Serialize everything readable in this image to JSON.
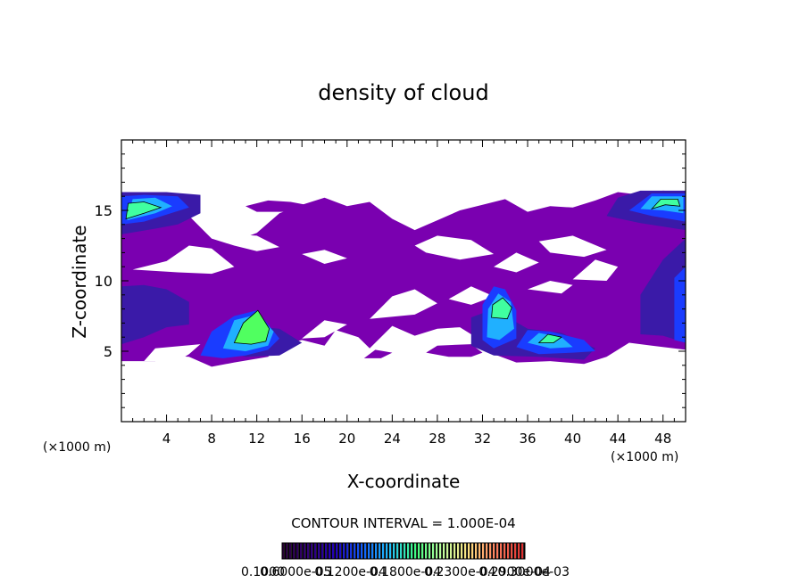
{
  "chart_data": {
    "type": "heatmap",
    "title": "density of cloud",
    "xlabel": "X-coordinate",
    "ylabel": "Z-coordinate",
    "x_unit_label": "(×1000 m)",
    "x_unit_label_right": "(×1000 m)",
    "xlim": [
      0,
      50
    ],
    "ylim": [
      0,
      20
    ],
    "x_ticks": [
      "4",
      "8",
      "12",
      "16",
      "20",
      "24",
      "28",
      "32",
      "36",
      "40",
      "44",
      "48"
    ],
    "y_ticks": [
      "5",
      "10",
      "15"
    ],
    "x_tick_values": [
      4,
      8,
      12,
      16,
      20,
      24,
      28,
      32,
      36,
      40,
      44,
      48
    ],
    "y_tick_values": [
      5,
      10,
      15
    ],
    "contour_interval_label": "CONTOUR INTERVAL = 1.000E-04",
    "colorbar_labels": [
      "0.1000",
      "0.6000e-05",
      "0.1200e-04",
      "0.1800e-04",
      "0.2300e-04",
      "0.2900e-04",
      "0.3000e-03"
    ],
    "colorbar_colors": [
      "#2a0038",
      "#30007a",
      "#2000c0",
      "#1060ff",
      "#20c0ff",
      "#40ff80",
      "#c0ffa0",
      "#ffe080",
      "#ff8060",
      "#e03030"
    ],
    "layers": {
      "background_color": "#7a00b0",
      "mid_color": "#3a1aa8",
      "core_colors": [
        "#1a3cff",
        "#20b0ff",
        "#40ffa0",
        "#50ff60"
      ]
    }
  }
}
